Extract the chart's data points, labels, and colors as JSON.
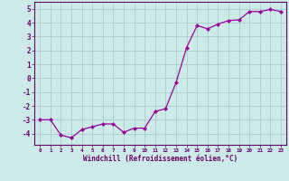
{
  "x": [
    0,
    1,
    2,
    3,
    4,
    5,
    6,
    7,
    8,
    9,
    10,
    11,
    12,
    13,
    14,
    15,
    16,
    17,
    18,
    19,
    20,
    21,
    22,
    23
  ],
  "y": [
    -3.0,
    -3.0,
    -4.1,
    -4.3,
    -3.7,
    -3.5,
    -3.3,
    -3.3,
    -3.9,
    -3.6,
    -3.6,
    -2.4,
    -2.2,
    -0.3,
    2.2,
    3.8,
    3.55,
    3.9,
    4.15,
    4.2,
    4.8,
    4.8,
    4.95,
    4.8
  ],
  "xlim": [
    -0.5,
    23.5
  ],
  "ylim": [
    -4.8,
    5.5
  ],
  "yticks": [
    -4,
    -3,
    -2,
    -1,
    0,
    1,
    2,
    3,
    4,
    5
  ],
  "xticks": [
    0,
    1,
    2,
    3,
    4,
    5,
    6,
    7,
    8,
    9,
    10,
    11,
    12,
    13,
    14,
    15,
    16,
    17,
    18,
    19,
    20,
    21,
    22,
    23
  ],
  "xlabel": "Windchill (Refroidissement éolien,°C)",
  "line_color": "#990099",
  "marker": "D",
  "marker_size": 2.0,
  "bg_color": "#cceae7",
  "grid_color": "#aacccc",
  "axis_color": "#660066",
  "tick_label_color": "#660066",
  "xlabel_color": "#660066"
}
